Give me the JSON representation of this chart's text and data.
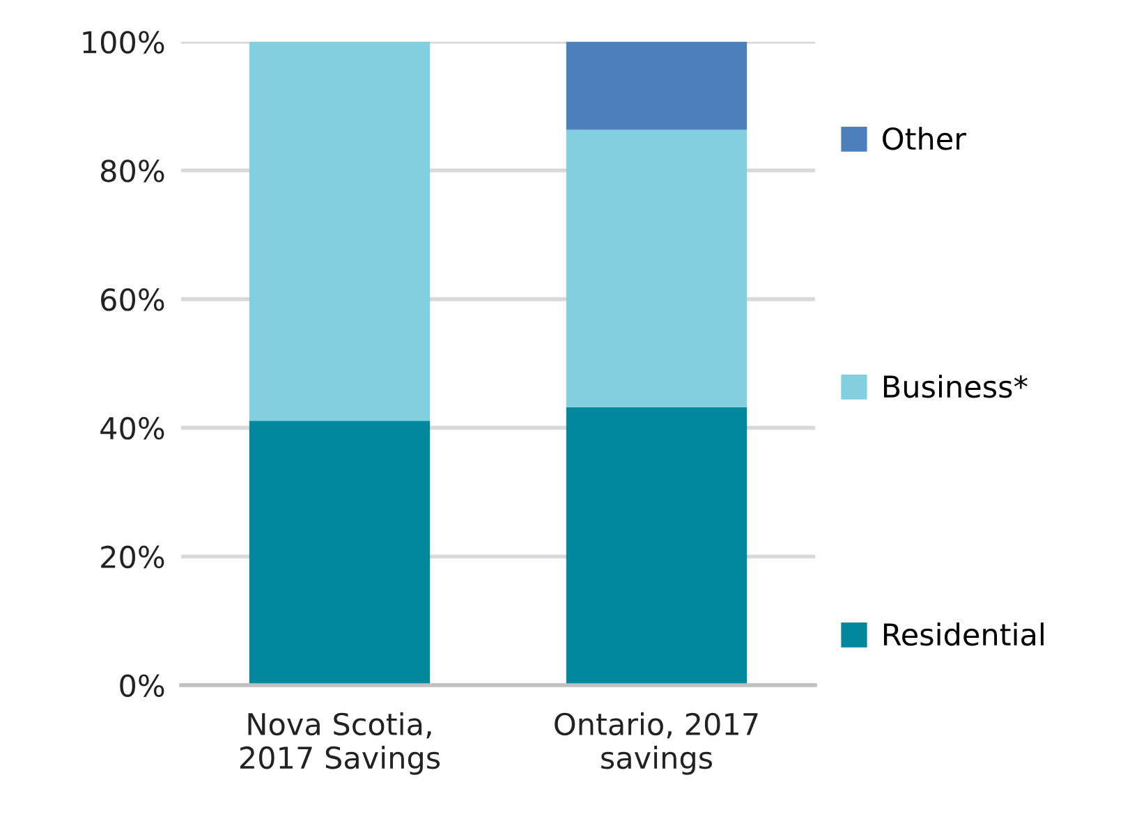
{
  "chart_data": {
    "type": "bar",
    "stacked": true,
    "categories": [
      "Nova Scotia,\n2017 Savings",
      "Ontario, 2017\nsavings"
    ],
    "series": [
      {
        "name": "Residential",
        "color": "#00889c",
        "values": [
          41.1,
          43.2
        ]
      },
      {
        "name": "Business*",
        "color": "#82cfe0",
        "values": [
          58.9,
          43.1
        ]
      },
      {
        "name": "Other",
        "color": "#4e80bd",
        "values": [
          0,
          13.7
        ]
      }
    ],
    "ylim": [
      0,
      100
    ],
    "yticks": [
      {
        "value": 0,
        "label": "0%"
      },
      {
        "value": 20,
        "label": "20%"
      },
      {
        "value": 40,
        "label": "40%"
      },
      {
        "value": 60,
        "label": "60%"
      },
      {
        "value": 80,
        "label": "80%"
      },
      {
        "value": 100,
        "label": "100%"
      }
    ],
    "grid": "y",
    "legend": "right"
  }
}
